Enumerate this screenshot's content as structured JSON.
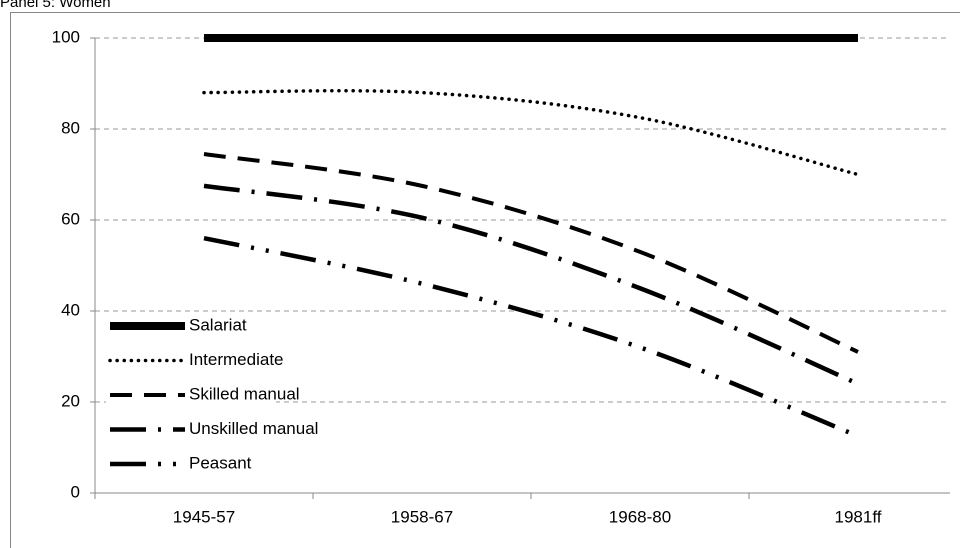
{
  "chart_data": {
    "type": "line",
    "title": "Panel 5: Women",
    "categories": [
      "1945-57",
      "1958-67",
      "1968-80",
      "1981ff"
    ],
    "series": [
      {
        "name": "Salariat",
        "color": "#000000",
        "style": "solid",
        "values": [
          100,
          100,
          100,
          100
        ]
      },
      {
        "name": "Intermediate",
        "color": "#000000",
        "style": "dotted",
        "values": [
          88,
          88,
          82.5,
          70
        ]
      },
      {
        "name": "Skilled manual",
        "color": "#000000",
        "style": "dashed",
        "values": [
          74.5,
          67.5,
          53,
          31
        ]
      },
      {
        "name": "Unskilled manual",
        "color": "#000000",
        "style": "long-dash-dot",
        "values": [
          67.5,
          60.5,
          45,
          24
        ]
      },
      {
        "name": "Peasant",
        "color": "#000000",
        "style": "long-dash-dot-dot",
        "values": [
          56,
          46,
          32,
          12.5
        ]
      }
    ],
    "ylim": [
      0,
      100
    ],
    "yticks": [
      0,
      20,
      40,
      60,
      80,
      100
    ],
    "grid": true,
    "legend": "lower left"
  }
}
